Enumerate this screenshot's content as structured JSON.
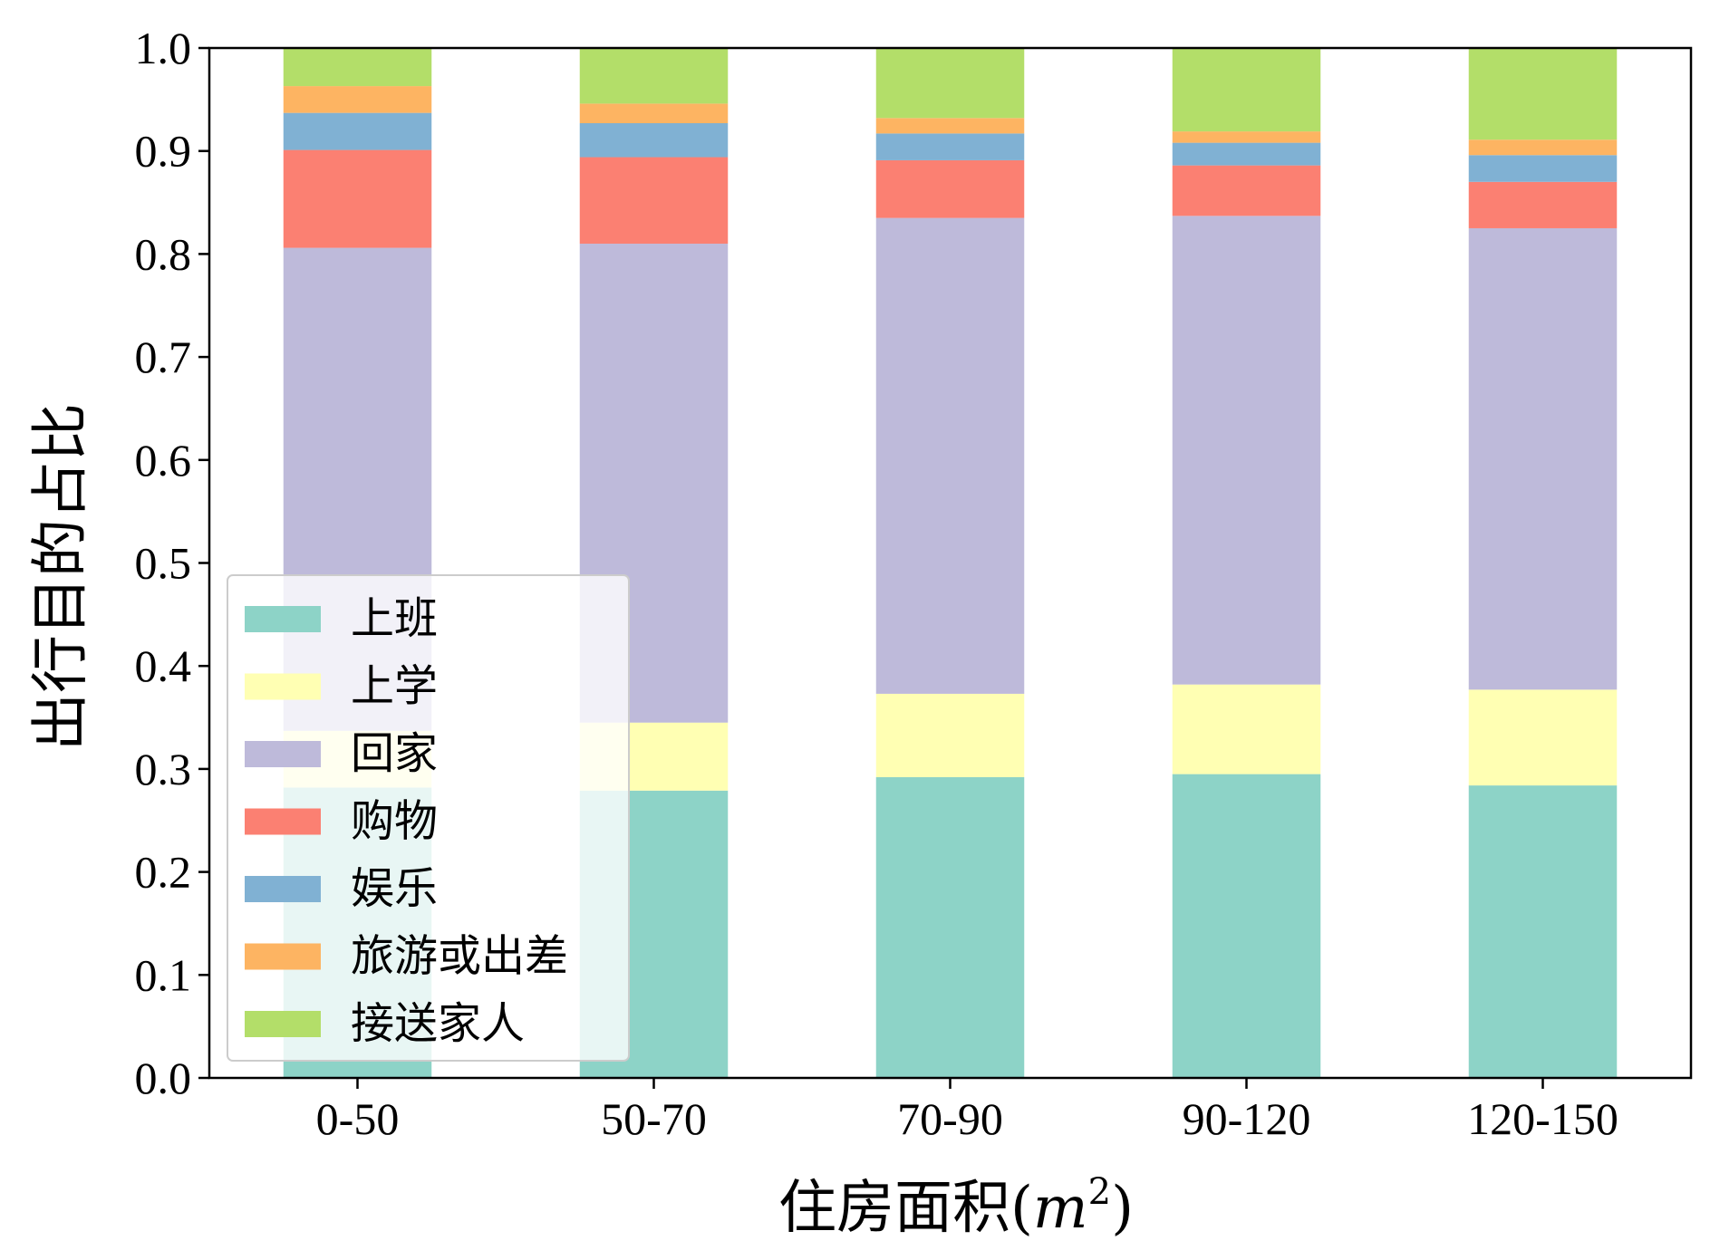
{
  "chart_data": {
    "type": "bar",
    "stacked": true,
    "xlabel": "住房面积",
    "xlabel_unit": "m",
    "xlabel_exp": "2",
    "ylabel": "出行目的占比",
    "ylim": [
      0,
      1.0
    ],
    "yticks": [
      "0.0",
      "0.1",
      "0.2",
      "0.3",
      "0.4",
      "0.5",
      "0.6",
      "0.7",
      "0.8",
      "0.9",
      "1.0"
    ],
    "categories": [
      "0-50",
      "50-70",
      "70-90",
      "90-120",
      "120-150"
    ],
    "legend_position": "lower-left",
    "series": [
      {
        "name": "上班",
        "color": "#8dd3c7",
        "values": [
          0.282,
          0.279,
          0.292,
          0.295,
          0.284
        ]
      },
      {
        "name": "上学",
        "color": "#ffffb3",
        "values": [
          0.055,
          0.066,
          0.081,
          0.087,
          0.093
        ]
      },
      {
        "name": "回家",
        "color": "#bebada",
        "values": [
          0.469,
          0.465,
          0.462,
          0.455,
          0.448
        ]
      },
      {
        "name": "购物",
        "color": "#fb8072",
        "values": [
          0.095,
          0.084,
          0.056,
          0.049,
          0.045
        ]
      },
      {
        "name": "娱乐",
        "color": "#80b1d3",
        "values": [
          0.036,
          0.033,
          0.026,
          0.022,
          0.026
        ]
      },
      {
        "name": "旅游或出差",
        "color": "#fdb462",
        "values": [
          0.026,
          0.019,
          0.015,
          0.011,
          0.015
        ]
      },
      {
        "name": "接送家人",
        "color": "#b3de69",
        "values": [
          0.037,
          0.054,
          0.068,
          0.081,
          0.089
        ]
      }
    ]
  }
}
